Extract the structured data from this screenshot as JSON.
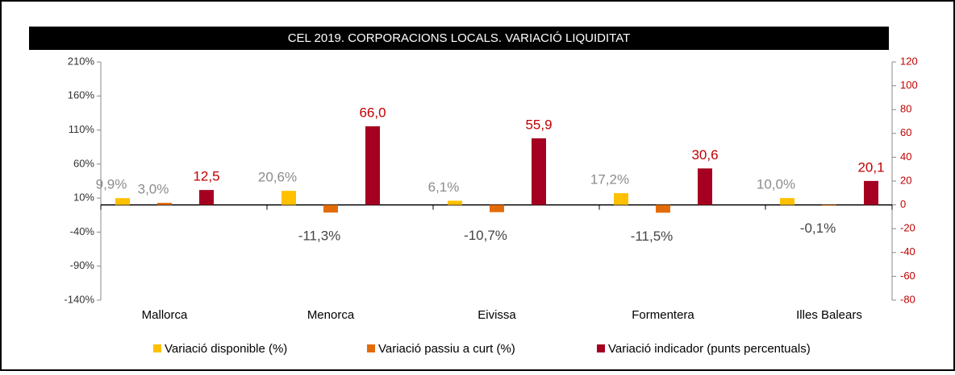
{
  "chart_data": {
    "type": "bar",
    "title": "CEL 2019. CORPORACIONS LOCALS. VARIACIÓ LIQUIDITAT",
    "categories": [
      "Mallorca",
      "Menorca",
      "Eivissa",
      "Formentera",
      "Illes Balears"
    ],
    "series": [
      {
        "name": "Variació disponible (%)",
        "color": "#FFC000",
        "values": [
          9.9,
          20.6,
          6.1,
          17.2,
          10.0
        ],
        "value_labels": [
          "9,9%",
          "20,6%",
          "6,1%",
          "17,2%",
          "10,0%"
        ]
      },
      {
        "name": "Variació passiu a curt (%)",
        "color": "#E36C09",
        "values": [
          3.0,
          -11.3,
          -10.7,
          -11.5,
          -0.1
        ],
        "value_labels": [
          "3,0%",
          "-11,3%",
          "-10,7%",
          "-11,5%",
          "-0,1%"
        ]
      },
      {
        "name": "Variació indicador (punts percentuals)",
        "color": "#A50021",
        "axis": "y2",
        "values": [
          12.5,
          66.0,
          55.9,
          30.6,
          20.1
        ],
        "value_labels": [
          "12,5",
          "66,0",
          "55,9",
          "30,6",
          "20,1"
        ]
      }
    ],
    "ylim": [
      -140,
      210
    ],
    "yticks": [
      {
        "value": -140,
        "label": "-140%"
      },
      {
        "value": -90,
        "label": "-90%"
      },
      {
        "value": -40,
        "label": "-40%"
      },
      {
        "value": 10,
        "label": "10%"
      },
      {
        "value": 60,
        "label": "60%"
      },
      {
        "value": 110,
        "label": "110%"
      },
      {
        "value": 160,
        "label": "160%"
      },
      {
        "value": 210,
        "label": "210%"
      }
    ],
    "y2lim": [
      -80,
      120
    ],
    "y2ticks": [
      -80,
      -60,
      -40,
      -20,
      0,
      20,
      40,
      60,
      80,
      100,
      120
    ],
    "legend": "bottom"
  }
}
